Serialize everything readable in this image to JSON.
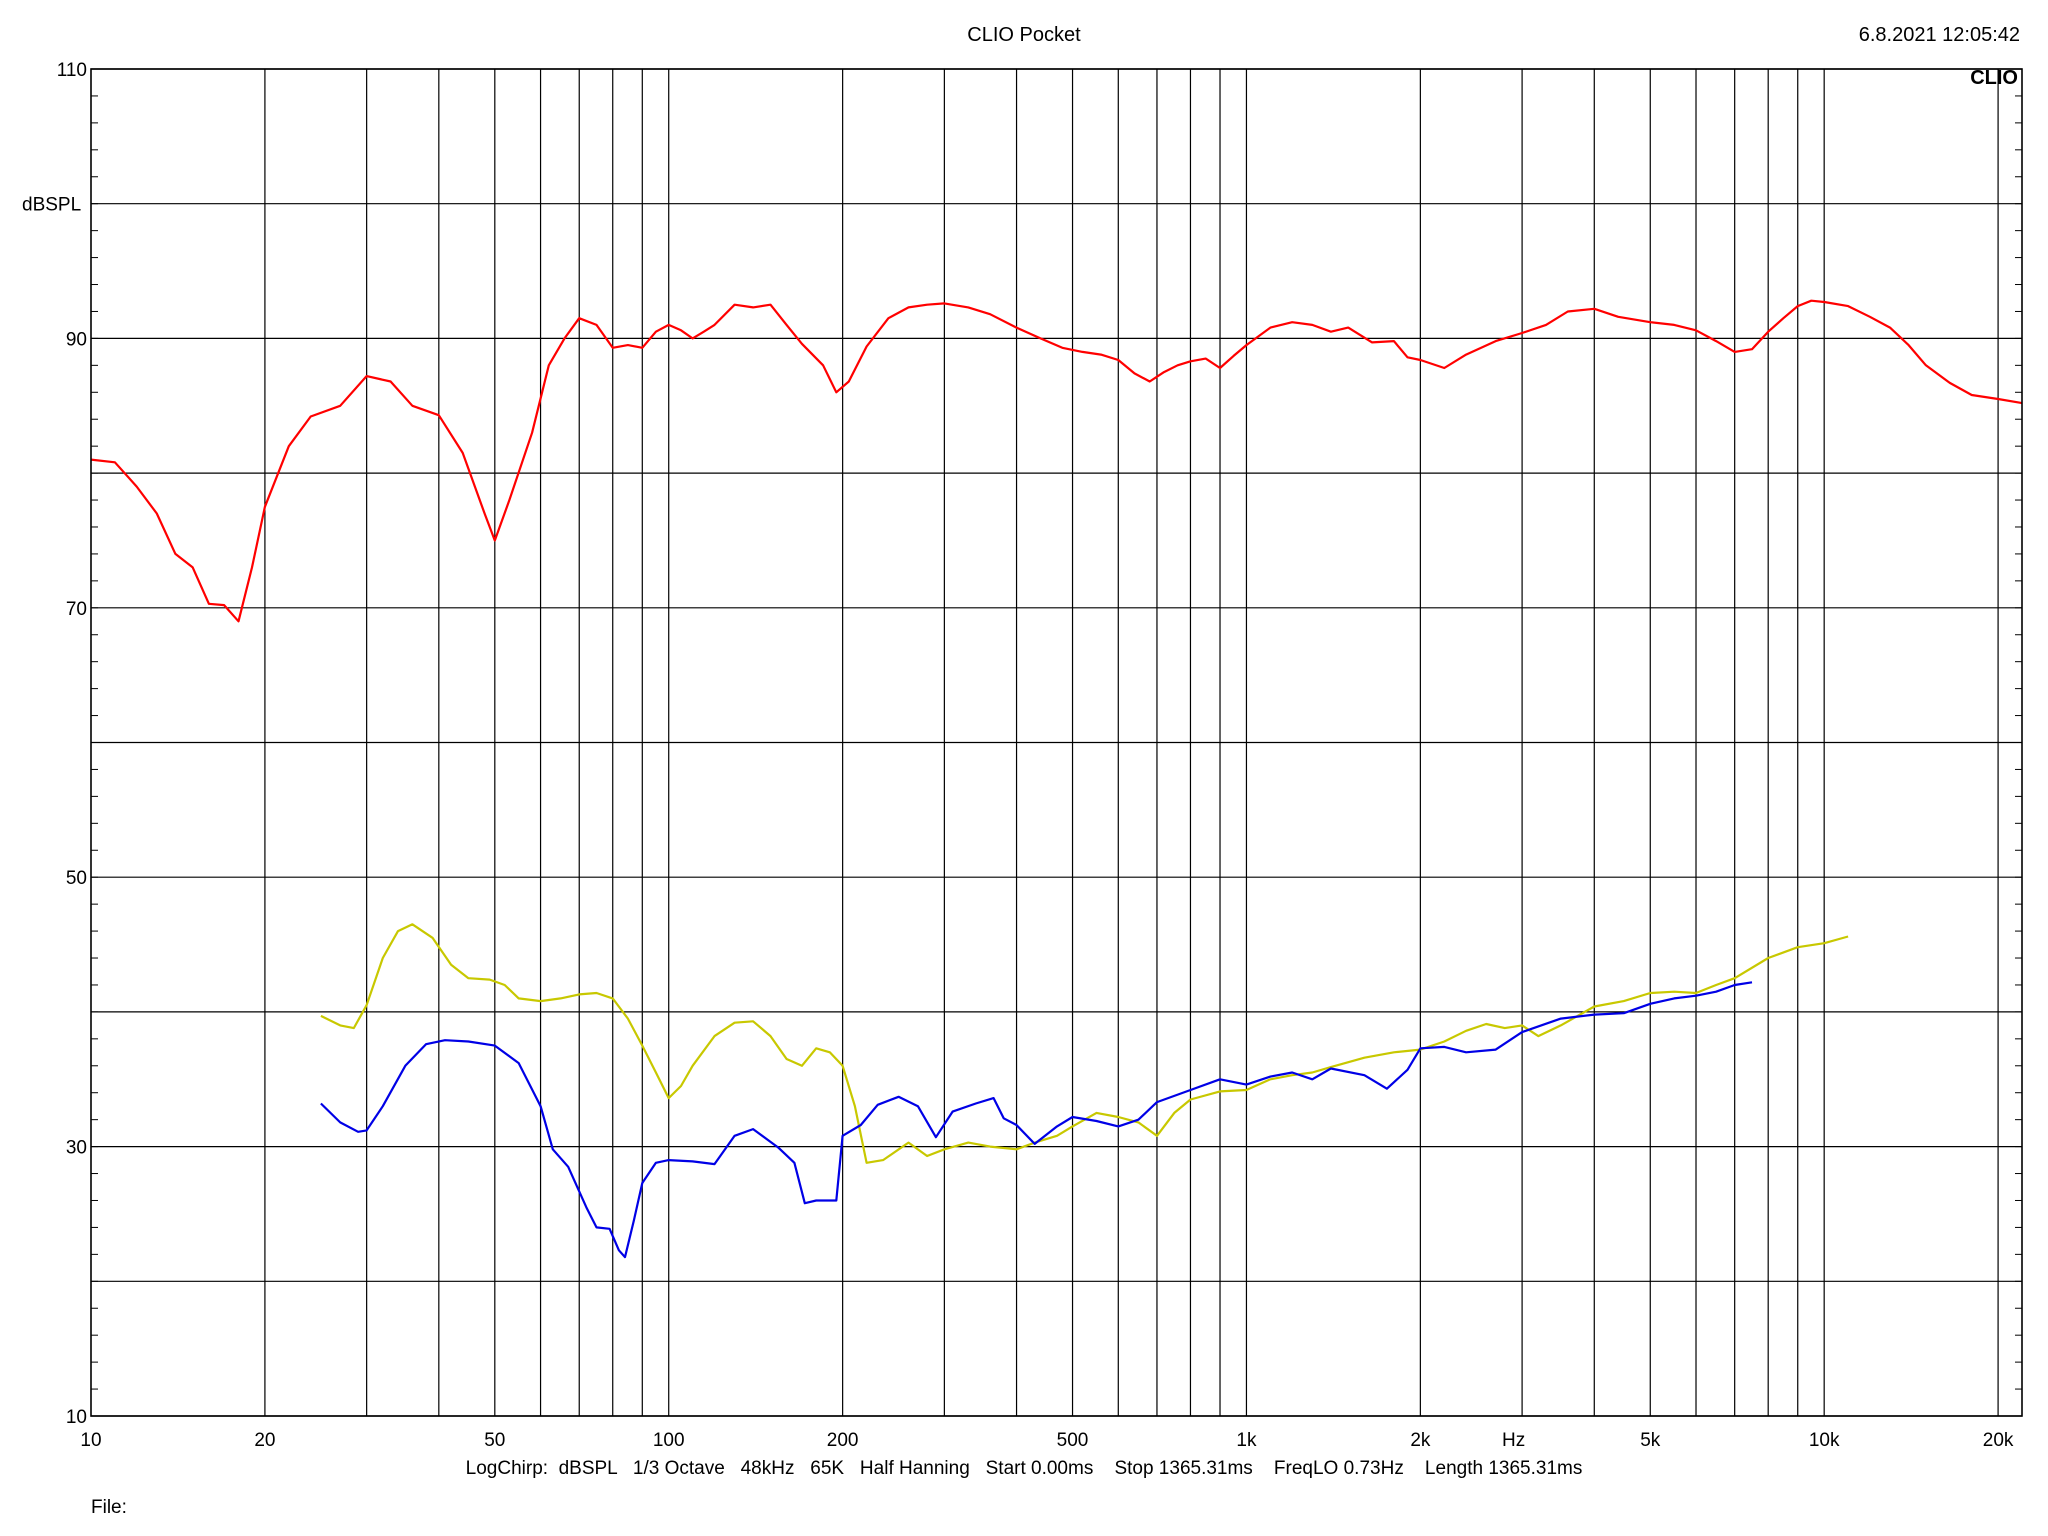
{
  "header": {
    "title": "CLIO Pocket",
    "timestamp": "6.8.2021 12:05:42"
  },
  "footer": {
    "info": "LogChirp:  dBSPL   1/3 Octave   48kHz   65K   Half Hanning   Start 0.00ms    Stop 1365.31ms    FreqLO 0.73Hz    Length 1365.31ms",
    "file_label": "File:"
  },
  "chart_data": {
    "type": "line",
    "watermark": "CLIO",
    "ylabel": "dBSPL",
    "xlabel": "Hz",
    "x_scale": "log",
    "xlim": [
      10,
      22000
    ],
    "ylim": [
      10,
      110
    ],
    "grid": true,
    "y_ticks": [
      {
        "value": 110,
        "label": "110"
      },
      {
        "value": 90,
        "label": "90"
      },
      {
        "value": 70,
        "label": "70"
      },
      {
        "value": 50,
        "label": "50"
      },
      {
        "value": 30,
        "label": "30"
      },
      {
        "value": 10,
        "label": "10"
      }
    ],
    "y_grid": [
      10,
      20,
      30,
      40,
      50,
      60,
      70,
      80,
      90,
      100,
      110
    ],
    "x_ticks": [
      {
        "value": 10,
        "label": "10"
      },
      {
        "value": 20,
        "label": "20"
      },
      {
        "value": 50,
        "label": "50"
      },
      {
        "value": 100,
        "label": "100"
      },
      {
        "value": 200,
        "label": "200"
      },
      {
        "value": 500,
        "label": "500"
      },
      {
        "value": 1000,
        "label": "1k"
      },
      {
        "value": 2000,
        "label": "2k"
      },
      {
        "value": 5000,
        "label": "5k"
      },
      {
        "value": 10000,
        "label": "10k"
      },
      {
        "value": 20000,
        "label": "20k"
      }
    ],
    "x_grid": [
      20,
      30,
      40,
      50,
      60,
      70,
      80,
      90,
      100,
      200,
      300,
      400,
      500,
      600,
      700,
      800,
      900,
      1000,
      2000,
      3000,
      4000,
      5000,
      6000,
      7000,
      8000,
      9000,
      10000,
      20000
    ],
    "series": [
      {
        "color": "#ff0000",
        "points": [
          [
            10,
            81
          ],
          [
            11,
            80.8
          ],
          [
            12,
            79
          ],
          [
            13,
            77
          ],
          [
            14,
            74
          ],
          [
            15,
            73
          ],
          [
            16,
            70.3
          ],
          [
            17,
            70.2
          ],
          [
            18,
            69
          ],
          [
            19,
            73
          ],
          [
            20,
            77.5
          ],
          [
            22,
            82
          ],
          [
            24,
            84.2
          ],
          [
            27,
            85
          ],
          [
            30,
            87.2
          ],
          [
            33,
            86.8
          ],
          [
            36,
            85
          ],
          [
            40,
            84.3
          ],
          [
            44,
            81.5
          ],
          [
            48,
            77
          ],
          [
            50,
            75
          ],
          [
            53,
            78
          ],
          [
            58,
            83
          ],
          [
            62,
            88
          ],
          [
            66,
            90
          ],
          [
            70,
            91.5
          ],
          [
            75,
            91
          ],
          [
            80,
            89.3
          ],
          [
            85,
            89.5
          ],
          [
            90,
            89.3
          ],
          [
            95,
            90.5
          ],
          [
            100,
            91
          ],
          [
            105,
            90.6
          ],
          [
            110,
            90
          ],
          [
            115,
            90.5
          ],
          [
            120,
            91
          ],
          [
            130,
            92.5
          ],
          [
            140,
            92.3
          ],
          [
            150,
            92.5
          ],
          [
            160,
            91
          ],
          [
            170,
            89.6
          ],
          [
            185,
            88
          ],
          [
            195,
            86
          ],
          [
            205,
            86.8
          ],
          [
            220,
            89.4
          ],
          [
            240,
            91.5
          ],
          [
            260,
            92.3
          ],
          [
            280,
            92.5
          ],
          [
            300,
            92.6
          ],
          [
            330,
            92.3
          ],
          [
            360,
            91.8
          ],
          [
            400,
            90.8
          ],
          [
            440,
            90
          ],
          [
            480,
            89.3
          ],
          [
            520,
            89
          ],
          [
            560,
            88.8
          ],
          [
            600,
            88.4
          ],
          [
            640,
            87.4
          ],
          [
            680,
            86.8
          ],
          [
            720,
            87.5
          ],
          [
            760,
            88
          ],
          [
            800,
            88.3
          ],
          [
            850,
            88.5
          ],
          [
            900,
            87.8
          ],
          [
            950,
            88.7
          ],
          [
            1000,
            89.5
          ],
          [
            1100,
            90.8
          ],
          [
            1200,
            91.2
          ],
          [
            1300,
            91
          ],
          [
            1400,
            90.5
          ],
          [
            1500,
            90.8
          ],
          [
            1650,
            89.7
          ],
          [
            1800,
            89.8
          ],
          [
            1900,
            88.6
          ],
          [
            2000,
            88.4
          ],
          [
            2200,
            87.8
          ],
          [
            2400,
            88.8
          ],
          [
            2700,
            89.8
          ],
          [
            3000,
            90.4
          ],
          [
            3300,
            91
          ],
          [
            3600,
            92
          ],
          [
            4000,
            92.2
          ],
          [
            4400,
            91.6
          ],
          [
            5000,
            91.2
          ],
          [
            5500,
            91
          ],
          [
            6000,
            90.6
          ],
          [
            6500,
            89.8
          ],
          [
            7000,
            89
          ],
          [
            7500,
            89.2
          ],
          [
            8000,
            90.5
          ],
          [
            8500,
            91.5
          ],
          [
            9000,
            92.4
          ],
          [
            9500,
            92.8
          ],
          [
            10000,
            92.7
          ],
          [
            11000,
            92.4
          ],
          [
            12000,
            91.6
          ],
          [
            13000,
            90.8
          ],
          [
            14000,
            89.5
          ],
          [
            15000,
            88
          ],
          [
            16500,
            86.7
          ],
          [
            18000,
            85.8
          ],
          [
            20000,
            85.5
          ],
          [
            22000,
            85.2
          ]
        ]
      },
      {
        "color": "#c8c800",
        "points": [
          [
            25,
            39.7
          ],
          [
            27,
            39
          ],
          [
            28.5,
            38.8
          ],
          [
            30,
            40.5
          ],
          [
            32,
            44
          ],
          [
            34,
            46
          ],
          [
            36,
            46.5
          ],
          [
            39,
            45.5
          ],
          [
            42,
            43.5
          ],
          [
            45,
            42.5
          ],
          [
            49,
            42.4
          ],
          [
            52,
            42
          ],
          [
            55,
            41
          ],
          [
            60,
            40.8
          ],
          [
            65,
            41
          ],
          [
            70,
            41.3
          ],
          [
            75,
            41.4
          ],
          [
            80,
            41
          ],
          [
            85,
            39.5
          ],
          [
            90,
            37.5
          ],
          [
            95,
            35.5
          ],
          [
            100,
            33.6
          ],
          [
            105,
            34.5
          ],
          [
            110,
            36
          ],
          [
            120,
            38.2
          ],
          [
            130,
            39.2
          ],
          [
            140,
            39.3
          ],
          [
            150,
            38.2
          ],
          [
            160,
            36.5
          ],
          [
            170,
            36
          ],
          [
            180,
            37.3
          ],
          [
            190,
            37
          ],
          [
            200,
            36
          ],
          [
            210,
            33
          ],
          [
            220,
            28.8
          ],
          [
            235,
            29
          ],
          [
            260,
            30.3
          ],
          [
            280,
            29.3
          ],
          [
            300,
            29.8
          ],
          [
            330,
            30.3
          ],
          [
            360,
            30
          ],
          [
            400,
            29.8
          ],
          [
            430,
            30.3
          ],
          [
            470,
            30.8
          ],
          [
            500,
            31.5
          ],
          [
            550,
            32.5
          ],
          [
            600,
            32.2
          ],
          [
            650,
            31.8
          ],
          [
            700,
            30.8
          ],
          [
            750,
            32.5
          ],
          [
            800,
            33.5
          ],
          [
            900,
            34.1
          ],
          [
            1000,
            34.2
          ],
          [
            1100,
            35
          ],
          [
            1200,
            35.3
          ],
          [
            1300,
            35.5
          ],
          [
            1400,
            35.9
          ],
          [
            1600,
            36.6
          ],
          [
            1800,
            37
          ],
          [
            2000,
            37.2
          ],
          [
            2200,
            37.8
          ],
          [
            2400,
            38.6
          ],
          [
            2600,
            39.1
          ],
          [
            2800,
            38.8
          ],
          [
            3000,
            39
          ],
          [
            3200,
            38.2
          ],
          [
            3500,
            39
          ],
          [
            4000,
            40.4
          ],
          [
            4500,
            40.8
          ],
          [
            5000,
            41.4
          ],
          [
            5500,
            41.5
          ],
          [
            6000,
            41.4
          ],
          [
            6500,
            42
          ],
          [
            7000,
            42.5
          ],
          [
            8000,
            44
          ],
          [
            9000,
            44.8
          ],
          [
            10000,
            45.1
          ],
          [
            11000,
            45.6
          ]
        ]
      },
      {
        "color": "#0000e6",
        "points": [
          [
            25,
            33.2
          ],
          [
            27,
            31.8
          ],
          [
            29,
            31.1
          ],
          [
            30,
            31.2
          ],
          [
            32,
            33
          ],
          [
            35,
            36
          ],
          [
            38,
            37.6
          ],
          [
            41,
            37.9
          ],
          [
            45,
            37.8
          ],
          [
            50,
            37.5
          ],
          [
            55,
            36.2
          ],
          [
            60,
            33
          ],
          [
            63,
            29.8
          ],
          [
            67,
            28.5
          ],
          [
            72,
            25.5
          ],
          [
            75,
            24
          ],
          [
            79,
            23.9
          ],
          [
            82,
            22.3
          ],
          [
            84,
            21.8
          ],
          [
            87,
            24.5
          ],
          [
            90,
            27.3
          ],
          [
            95,
            28.8
          ],
          [
            100,
            29
          ],
          [
            110,
            28.9
          ],
          [
            120,
            28.7
          ],
          [
            130,
            30.8
          ],
          [
            140,
            31.3
          ],
          [
            155,
            29.9
          ],
          [
            165,
            28.8
          ],
          [
            172,
            25.8
          ],
          [
            180,
            26
          ],
          [
            195,
            26
          ],
          [
            200,
            30.8
          ],
          [
            215,
            31.6
          ],
          [
            230,
            33.1
          ],
          [
            250,
            33.7
          ],
          [
            270,
            33
          ],
          [
            290,
            30.7
          ],
          [
            310,
            32.6
          ],
          [
            340,
            33.2
          ],
          [
            365,
            33.6
          ],
          [
            380,
            32.1
          ],
          [
            400,
            31.6
          ],
          [
            430,
            30.2
          ],
          [
            470,
            31.5
          ],
          [
            500,
            32.2
          ],
          [
            550,
            31.9
          ],
          [
            600,
            31.5
          ],
          [
            650,
            32
          ],
          [
            700,
            33.3
          ],
          [
            800,
            34.2
          ],
          [
            900,
            35
          ],
          [
            1000,
            34.6
          ],
          [
            1100,
            35.2
          ],
          [
            1200,
            35.5
          ],
          [
            1300,
            35
          ],
          [
            1400,
            35.8
          ],
          [
            1600,
            35.3
          ],
          [
            1750,
            34.3
          ],
          [
            1900,
            35.7
          ],
          [
            2000,
            37.3
          ],
          [
            2200,
            37.4
          ],
          [
            2400,
            37
          ],
          [
            2700,
            37.2
          ],
          [
            3000,
            38.5
          ],
          [
            3500,
            39.5
          ],
          [
            4000,
            39.8
          ],
          [
            4500,
            39.9
          ],
          [
            5000,
            40.6
          ],
          [
            5500,
            41
          ],
          [
            6000,
            41.2
          ],
          [
            6500,
            41.5
          ],
          [
            7000,
            42
          ],
          [
            7500,
            42.2
          ]
        ]
      }
    ]
  }
}
